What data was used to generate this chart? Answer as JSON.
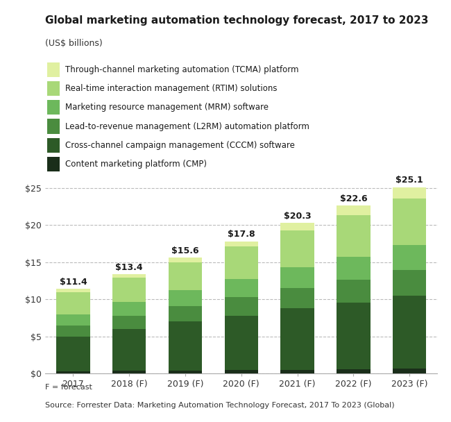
{
  "title": "Global marketing automation technology forecast, 2017 to 2023",
  "subtitle": "(US$ billions)",
  "categories": [
    "2017",
    "2018 (F)",
    "2019 (F)",
    "2020 (F)",
    "2021 (F)",
    "2022 (F)",
    "2023 (F)"
  ],
  "totals": [
    11.4,
    13.4,
    15.6,
    17.8,
    20.3,
    22.6,
    25.1
  ],
  "segments": {
    "CMP": [
      0.3,
      0.35,
      0.4,
      0.45,
      0.5,
      0.55,
      0.65
    ],
    "CCCM": [
      4.7,
      5.65,
      6.6,
      7.35,
      8.3,
      8.95,
      9.85
    ],
    "L2RM": [
      1.5,
      1.8,
      2.1,
      2.45,
      2.75,
      3.1,
      3.4
    ],
    "MRM": [
      1.5,
      1.8,
      2.1,
      2.45,
      2.75,
      3.1,
      3.4
    ],
    "RTIM": [
      2.9,
      3.3,
      3.8,
      4.4,
      5.0,
      5.6,
      6.3
    ],
    "TCMA": [
      0.5,
      0.5,
      0.6,
      0.65,
      1.0,
      1.3,
      1.5
    ]
  },
  "colors": {
    "CMP": "#1a2e1a",
    "CCCM": "#2d5a27",
    "L2RM": "#4a8c3f",
    "MRM": "#6db85c",
    "RTIM": "#a8d878",
    "TCMA": "#e0f0a0"
  },
  "legend_labels": {
    "TCMA": "Through-channel marketing automation (TCMA) platform",
    "RTIM": "Real-time interaction management (RTIM) solutions",
    "MRM": "Marketing resource management (MRM) software",
    "L2RM": "Lead-to-revenue management (L2RM) automation platform",
    "CCCM": "Cross-channel campaign management (CCCM) software",
    "CMP": "Content marketing platform (CMP)"
  },
  "footer_line1": "F = forecast",
  "footer_line2": "Source: Forrester Data: Marketing Automation Technology Forecast, 2017 To 2023 (Global)",
  "ylim": [
    0,
    27
  ],
  "yticks": [
    0,
    5,
    10,
    15,
    20,
    25
  ],
  "ytick_labels": [
    "$0",
    "$5",
    "$10",
    "$15",
    "$20",
    "$25"
  ],
  "background_color": "#ffffff",
  "grid_color": "#bbbbbb",
  "bar_width": 0.6
}
